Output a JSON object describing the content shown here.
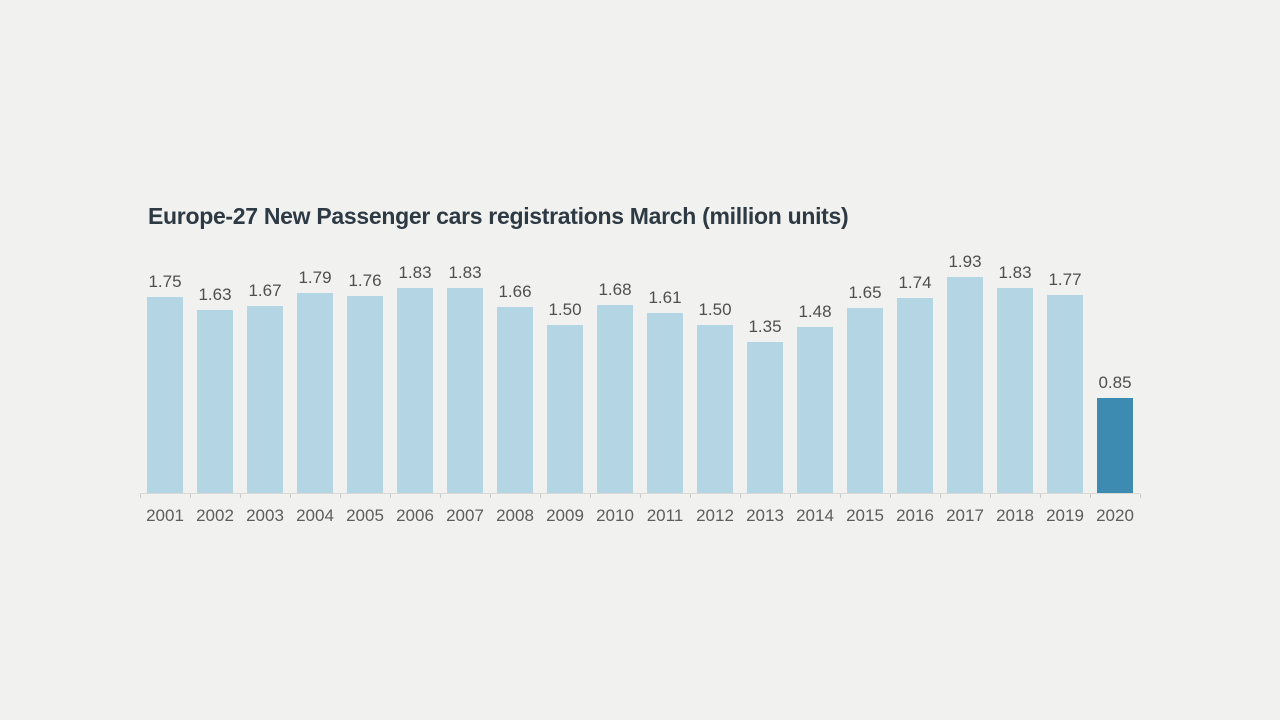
{
  "chart_data": {
    "type": "bar",
    "title": "Europe-27 New Passenger cars registrations March (million units)",
    "categories": [
      "2001",
      "2002",
      "2003",
      "2004",
      "2005",
      "2006",
      "2007",
      "2008",
      "2009",
      "2010",
      "2011",
      "2012",
      "2013",
      "2014",
      "2015",
      "2016",
      "2017",
      "2018",
      "2019",
      "2020"
    ],
    "values": [
      1.75,
      1.63,
      1.67,
      1.79,
      1.76,
      1.83,
      1.83,
      1.66,
      1.5,
      1.68,
      1.61,
      1.5,
      1.35,
      1.48,
      1.65,
      1.74,
      1.93,
      1.83,
      1.77,
      0.85
    ],
    "value_labels": [
      "1.75",
      "1.63",
      "1.67",
      "1.79",
      "1.76",
      "1.83",
      "1.83",
      "1.66",
      "1.50",
      "1.68",
      "1.61",
      "1.50",
      "1.35",
      "1.48",
      "1.65",
      "1.74",
      "1.93",
      "1.83",
      "1.77",
      "0.85"
    ],
    "highlight_index": 19,
    "xlabel": "",
    "ylabel": "",
    "ylim": [
      0,
      1.93
    ],
    "grid": false,
    "legend_position": "none",
    "colors": {
      "bar": "#b3d5e4",
      "highlight_bar": "#3e8bb2",
      "title": "#2d3a44",
      "value_label": "#4f4f4f",
      "year_label": "#5d5d5d",
      "axis": "#d9d9d6",
      "tick": "#c8c8c5",
      "background": "#f1f1ef"
    }
  }
}
